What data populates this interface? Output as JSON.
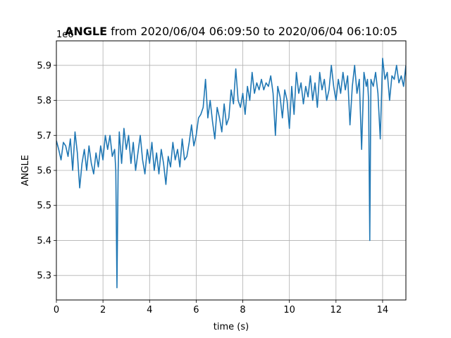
{
  "chart_data": {
    "type": "line",
    "title_bold": "ANGLE",
    "title_rest": " from 2020/06/04 06:09:50 to 2020/06/04 06:10:05",
    "xlabel": "time (s)",
    "ylabel": "ANGLE",
    "y_offset_label": "1e6",
    "xlim": [
      0,
      15
    ],
    "ylim": [
      5.23,
      5.97
    ],
    "grid": true,
    "x_ticks": [
      0,
      2,
      4,
      6,
      8,
      10,
      12,
      14
    ],
    "x_tick_labels": [
      "0",
      "2",
      "4",
      "6",
      "8",
      "10",
      "12",
      "14"
    ],
    "y_ticks": [
      5.3,
      5.4,
      5.5,
      5.6,
      5.7,
      5.8,
      5.9
    ],
    "y_tick_labels": [
      "5.3",
      "5.4",
      "5.5",
      "5.6",
      "5.7",
      "5.8",
      "5.9"
    ],
    "series": [
      {
        "color": "#1f77b4",
        "x": [
          0,
          0.1,
          0.2,
          0.3,
          0.4,
          0.5,
          0.6,
          0.7,
          0.8,
          0.9,
          1.0,
          1.1,
          1.2,
          1.3,
          1.4,
          1.5,
          1.6,
          1.7,
          1.8,
          1.9,
          2.0,
          2.1,
          2.2,
          2.3,
          2.4,
          2.5,
          2.55,
          2.6,
          2.65,
          2.7,
          2.8,
          2.9,
          3.0,
          3.1,
          3.2,
          3.3,
          3.4,
          3.5,
          3.6,
          3.7,
          3.8,
          3.9,
          4.0,
          4.1,
          4.2,
          4.3,
          4.4,
          4.5,
          4.6,
          4.7,
          4.8,
          4.9,
          5.0,
          5.1,
          5.2,
          5.3,
          5.4,
          5.5,
          5.6,
          5.7,
          5.8,
          5.9,
          6.0,
          6.1,
          6.2,
          6.3,
          6.4,
          6.5,
          6.6,
          6.7,
          6.8,
          6.9,
          7.0,
          7.1,
          7.2,
          7.3,
          7.4,
          7.5,
          7.6,
          7.7,
          7.8,
          7.9,
          8.0,
          8.1,
          8.2,
          8.3,
          8.4,
          8.5,
          8.6,
          8.7,
          8.8,
          8.9,
          9.0,
          9.1,
          9.2,
          9.3,
          9.4,
          9.5,
          9.6,
          9.7,
          9.8,
          9.9,
          10.0,
          10.1,
          10.2,
          10.3,
          10.4,
          10.5,
          10.6,
          10.7,
          10.8,
          10.9,
          11.0,
          11.1,
          11.2,
          11.3,
          11.4,
          11.5,
          11.6,
          11.7,
          11.8,
          11.9,
          12.0,
          12.1,
          12.2,
          12.3,
          12.4,
          12.5,
          12.6,
          12.7,
          12.8,
          12.9,
          13.0,
          13.1,
          13.2,
          13.3,
          13.35,
          13.4,
          13.45,
          13.5,
          13.6,
          13.7,
          13.8,
          13.9,
          14.0,
          14.1,
          14.2,
          14.3,
          14.4,
          14.5,
          14.6,
          14.7,
          14.8,
          14.9,
          15.0
        ],
        "y": [
          5.685,
          5.66,
          5.63,
          5.68,
          5.67,
          5.64,
          5.69,
          5.6,
          5.71,
          5.65,
          5.55,
          5.62,
          5.66,
          5.6,
          5.67,
          5.62,
          5.59,
          5.65,
          5.61,
          5.67,
          5.63,
          5.7,
          5.66,
          5.7,
          5.64,
          5.66,
          5.6,
          5.265,
          5.6,
          5.71,
          5.62,
          5.72,
          5.66,
          5.7,
          5.62,
          5.68,
          5.6,
          5.65,
          5.7,
          5.63,
          5.59,
          5.66,
          5.62,
          5.68,
          5.6,
          5.65,
          5.59,
          5.66,
          5.62,
          5.56,
          5.64,
          5.61,
          5.68,
          5.63,
          5.66,
          5.61,
          5.69,
          5.63,
          5.64,
          5.68,
          5.73,
          5.67,
          5.7,
          5.75,
          5.76,
          5.78,
          5.86,
          5.75,
          5.8,
          5.74,
          5.69,
          5.78,
          5.75,
          5.71,
          5.79,
          5.73,
          5.75,
          5.83,
          5.79,
          5.89,
          5.8,
          5.78,
          5.82,
          5.76,
          5.84,
          5.8,
          5.88,
          5.82,
          5.85,
          5.83,
          5.86,
          5.83,
          5.85,
          5.84,
          5.87,
          5.82,
          5.7,
          5.84,
          5.81,
          5.75,
          5.83,
          5.8,
          5.72,
          5.84,
          5.76,
          5.88,
          5.82,
          5.85,
          5.79,
          5.84,
          5.81,
          5.87,
          5.8,
          5.85,
          5.78,
          5.88,
          5.83,
          5.86,
          5.8,
          5.83,
          5.9,
          5.84,
          5.8,
          5.86,
          5.82,
          5.88,
          5.83,
          5.87,
          5.73,
          5.84,
          5.9,
          5.82,
          5.86,
          5.66,
          5.88,
          5.84,
          5.86,
          5.8,
          5.4,
          5.86,
          5.84,
          5.88,
          5.82,
          5.69,
          5.92,
          5.86,
          5.88,
          5.8,
          5.87,
          5.86,
          5.9,
          5.85,
          5.87,
          5.84,
          5.9
        ]
      }
    ]
  }
}
